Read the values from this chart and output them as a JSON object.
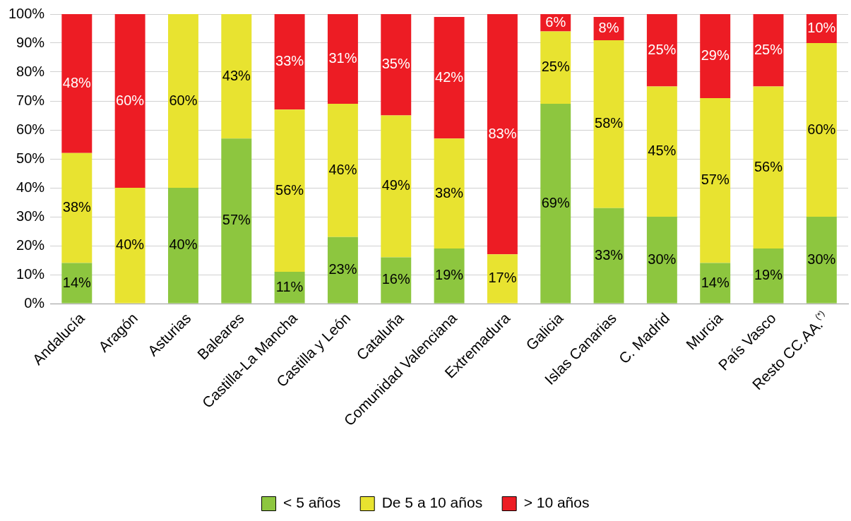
{
  "chart_data": {
    "type": "bar",
    "stacked": true,
    "categories": [
      "Andalucía",
      "Aragón",
      "Asturias",
      "Baleares",
      "Castilla-La Mancha",
      "Castilla y León",
      "Cataluña",
      "Comunidad Valenciana",
      "Extremadura",
      "Galicia",
      "Islas Canarias",
      "C. Madrid",
      "Murcia",
      "País Vasco",
      "Resto CC.AA.$^{(*)}$"
    ],
    "series": [
      {
        "name": "< 5 años",
        "color": "#8dc63f",
        "values": [
          14,
          0,
          40,
          57,
          11,
          23,
          16,
          19,
          0,
          69,
          33,
          30,
          14,
          19,
          30
        ],
        "value_labels": [
          "14%",
          null,
          "40%",
          "57%",
          "11%",
          "23%",
          "16%",
          "19%",
          null,
          "69%",
          "33%",
          "30%",
          "14%",
          "19%",
          "30%"
        ]
      },
      {
        "name": "De 5 a 10 años",
        "color": "#e8e330",
        "values": [
          38,
          40,
          60,
          43,
          56,
          46,
          49,
          38,
          17,
          25,
          58,
          45,
          57,
          56,
          60
        ],
        "value_labels": [
          "38%",
          "40%",
          "60%",
          "43%",
          "56%",
          "46%",
          "49%",
          "38%",
          "17%",
          "25%",
          "58%",
          "45%",
          "57%",
          "56%",
          "60%"
        ]
      },
      {
        "name": "> 10 años",
        "color": "#ed1c24",
        "values": [
          48,
          60,
          0,
          0,
          33,
          31,
          35,
          42,
          83,
          6,
          8,
          25,
          29,
          25,
          10
        ],
        "value_labels": [
          "48%",
          "60%",
          null,
          null,
          "33%",
          "31%",
          "35%",
          "42%",
          "83%",
          "6%",
          "8%",
          "25%",
          "29%",
          "25%",
          "10%"
        ]
      }
    ],
    "ylim": [
      0,
      100
    ],
    "yticks": [
      {
        "value": 0,
        "label": "0%"
      },
      {
        "value": 10,
        "label": "10%"
      },
      {
        "value": 20,
        "label": "20%"
      },
      {
        "value": 30,
        "label": "30%"
      },
      {
        "value": 40,
        "label": "40%"
      },
      {
        "value": 50,
        "label": "50%"
      },
      {
        "value": 60,
        "label": "60%"
      },
      {
        "value": 70,
        "label": "70%"
      },
      {
        "value": 80,
        "label": "80%"
      },
      {
        "value": 90,
        "label": "90%"
      },
      {
        "value": 100,
        "label": "100%"
      }
    ],
    "grid": "y",
    "legend": "bottom"
  }
}
